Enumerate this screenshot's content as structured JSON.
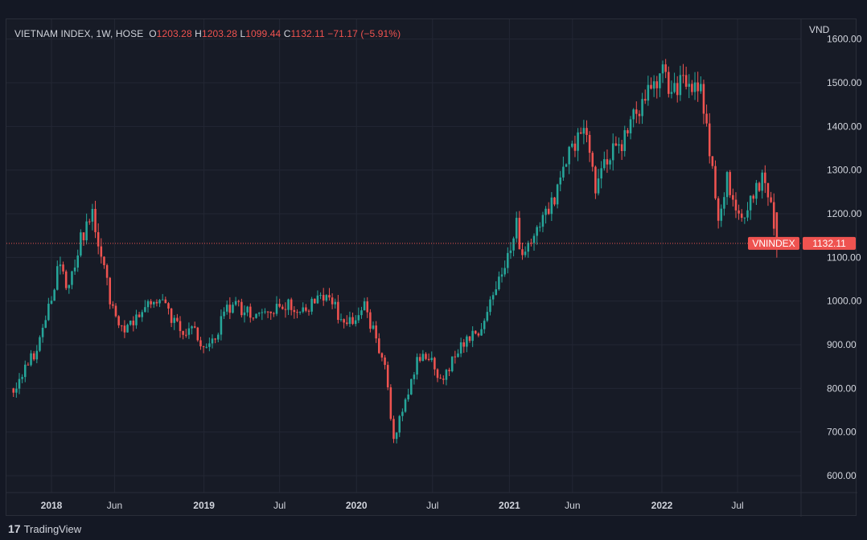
{
  "header": {
    "symbol_title": "VIETNAM INDEX, 1W, HOSE",
    "o_label": "O",
    "o_value": "1203.28",
    "h_label": "H",
    "h_value": "1203.28",
    "l_label": "L",
    "l_value": "1099.44",
    "c_label": "C",
    "c_value": "1132.11",
    "change": "−71.17 (−5.91%)"
  },
  "footer": {
    "brand": "TradingView"
  },
  "colors": {
    "up": "#26a69a",
    "down": "#ef5350",
    "background": "#171b26",
    "grid": "#232734",
    "text": "#d1d4dc"
  },
  "chart_data": {
    "type": "candlestick",
    "currency_label": "VND",
    "y_ticks": [
      "600.00",
      "700.00",
      "800.00",
      "900.00",
      "1000.00",
      "1100.00",
      "1200.00",
      "1300.00",
      "1400.00",
      "1500.00",
      "1600.00"
    ],
    "x_ticks": [
      {
        "label": "2018",
        "date": "2018-01-01",
        "bold": true
      },
      {
        "label": "Jun",
        "date": "2018-06-01",
        "bold": false
      },
      {
        "label": "2019",
        "date": "2019-01-01",
        "bold": true
      },
      {
        "label": "Jul",
        "date": "2019-07-01",
        "bold": false
      },
      {
        "label": "2020",
        "date": "2020-01-01",
        "bold": true
      },
      {
        "label": "Jul",
        "date": "2020-07-01",
        "bold": false
      },
      {
        "label": "2021",
        "date": "2021-01-01",
        "bold": true
      },
      {
        "label": "Jun",
        "date": "2021-06-01",
        "bold": false
      },
      {
        "label": "2022",
        "date": "2022-01-01",
        "bold": true
      },
      {
        "label": "Jul",
        "date": "2022-07-01",
        "bold": false
      }
    ],
    "last_price": {
      "symbol": "VNINDEX",
      "value": 1132.11,
      "label": "1132.11"
    },
    "anchors": [
      [
        "2017-10-02",
        800
      ],
      [
        "2017-11-20",
        880
      ],
      [
        "2017-12-25",
        985
      ],
      [
        "2018-01-22",
        1100
      ],
      [
        "2018-02-12",
        1020
      ],
      [
        "2018-03-12",
        1140
      ],
      [
        "2018-04-09",
        1200
      ],
      [
        "2018-04-30",
        1100
      ],
      [
        "2018-05-28",
        980
      ],
      [
        "2018-06-25",
        920
      ],
      [
        "2018-07-23",
        960
      ],
      [
        "2018-08-20",
        990
      ],
      [
        "2018-09-17",
        1010
      ],
      [
        "2018-10-15",
        960
      ],
      [
        "2018-11-12",
        920
      ],
      [
        "2018-12-03",
        950
      ],
      [
        "2018-12-31",
        890
      ],
      [
        "2019-01-28",
        920
      ],
      [
        "2019-02-25",
        980
      ],
      [
        "2019-03-25",
        985
      ],
      [
        "2019-05-06",
        960
      ],
      [
        "2019-06-10",
        970
      ],
      [
        "2019-07-15",
        990
      ],
      [
        "2019-08-19",
        980
      ],
      [
        "2019-09-23",
        995
      ],
      [
        "2019-10-28",
        1015
      ],
      [
        "2019-11-25",
        960
      ],
      [
        "2019-12-30",
        965
      ],
      [
        "2020-01-20",
        990
      ],
      [
        "2020-02-10",
        930
      ],
      [
        "2020-03-09",
        840
      ],
      [
        "2020-03-30",
        690
      ],
      [
        "2020-04-27",
        770
      ],
      [
        "2020-05-25",
        860
      ],
      [
        "2020-06-15",
        880
      ],
      [
        "2020-07-20",
        820
      ],
      [
        "2020-08-10",
        850
      ],
      [
        "2020-09-07",
        890
      ],
      [
        "2020-10-19",
        935
      ],
      [
        "2020-11-16",
        1000
      ],
      [
        "2020-12-28",
        1100
      ],
      [
        "2021-01-18",
        1180
      ],
      [
        "2021-02-01",
        1090
      ],
      [
        "2021-03-08",
        1170
      ],
      [
        "2021-04-19",
        1240
      ],
      [
        "2021-05-17",
        1320
      ],
      [
        "2021-06-28",
        1410
      ],
      [
        "2021-07-26",
        1260
      ],
      [
        "2021-08-23",
        1330
      ],
      [
        "2021-09-27",
        1350
      ],
      [
        "2021-11-01",
        1440
      ],
      [
        "2021-11-29",
        1470
      ],
      [
        "2022-01-03",
        1520
      ],
      [
        "2022-01-24",
        1470
      ],
      [
        "2022-02-14",
        1510
      ],
      [
        "2022-03-07",
        1480
      ],
      [
        "2022-04-04",
        1490
      ],
      [
        "2022-05-02",
        1310
      ],
      [
        "2022-05-16",
        1190
      ],
      [
        "2022-06-06",
        1290
      ],
      [
        "2022-07-04",
        1180
      ],
      [
        "2022-07-18",
        1200
      ],
      [
        "2022-08-15",
        1270
      ],
      [
        "2022-09-05",
        1280
      ],
      [
        "2022-09-26",
        1180
      ],
      [
        "2022-10-03",
        1140
      ]
    ],
    "last_candle": {
      "date": "2022-10-03",
      "open": 1203.28,
      "high": 1203.28,
      "low": 1099.44,
      "close": 1132.11
    }
  }
}
